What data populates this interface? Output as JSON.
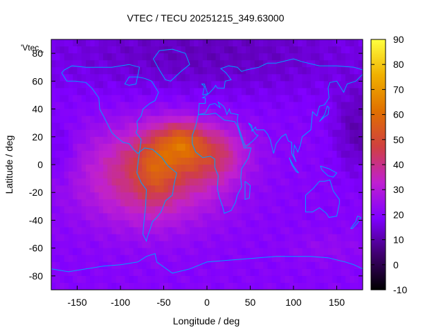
{
  "chart_data": {
    "type": "heatmap",
    "title": "VTEC / TECU 20251215_349.63000",
    "xlabel": "Longitude / deg",
    "ylabel": "Latitude / deg",
    "xlim": [
      -180,
      180
    ],
    "ylim": [
      -90,
      90
    ],
    "x_ticks": [
      -150,
      -100,
      -50,
      0,
      50,
      100,
      150
    ],
    "y_ticks": [
      80,
      60,
      40,
      20,
      0,
      -20,
      -40,
      -60,
      -80
    ],
    "colorbar": {
      "range": [
        -10,
        90
      ],
      "ticks": [
        90,
        80,
        70,
        60,
        50,
        40,
        30,
        20,
        10,
        0,
        -10
      ],
      "palette": [
        "#000000",
        "#400070",
        "#7f00ff",
        "#c020d0",
        "#d04040",
        "#e07000",
        "#f0b000",
        "#ffff40"
      ]
    },
    "key_label": "'Vtec_",
    "data_summary": {
      "background_value": 20,
      "peak_value": 75,
      "peak_location": {
        "lon": -30,
        "lat": 15
      },
      "enhanced_region": {
        "lon": [
          -160,
          40
        ],
        "lat": [
          -50,
          30
        ],
        "typical_value": 45
      },
      "low_regions": [
        {
          "lon": [
            -180,
            180
          ],
          "lat": [
            40,
            90
          ],
          "typical_value": 12
        },
        {
          "lon": [
            120,
            180
          ],
          "lat": [
            -10,
            40
          ],
          "typical_value": 12
        }
      ]
    },
    "coastline_color": "#00a0ff"
  }
}
